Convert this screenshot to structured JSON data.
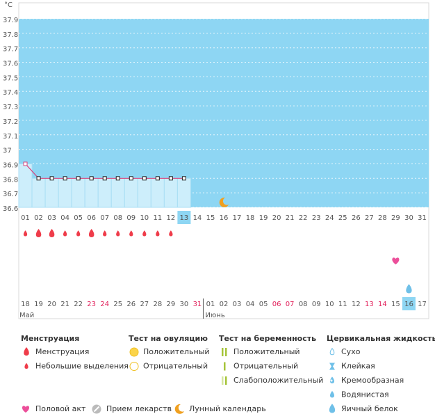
{
  "chart_data": {
    "type": "line",
    "y_label": "°C",
    "categories": [
      "01",
      "02",
      "03",
      "04",
      "05",
      "06",
      "07",
      "08",
      "09",
      "10",
      "11",
      "12",
      "13",
      "14",
      "15",
      "16",
      "17",
      "18",
      "19",
      "20",
      "21",
      "22",
      "23",
      "24",
      "25",
      "26",
      "27",
      "28",
      "29",
      "30",
      "31"
    ],
    "values": [
      36.9,
      36.8,
      36.8,
      36.8,
      36.8,
      36.8,
      36.8,
      36.8,
      36.8,
      36.8,
      36.8,
      36.8,
      36.8,
      null,
      null,
      null,
      null,
      null,
      null,
      null,
      null,
      null,
      null,
      null,
      null,
      null,
      null,
      null,
      null,
      null,
      null
    ],
    "ylim": [
      36.6,
      37.9
    ],
    "yticks": [
      36.6,
      36.7,
      36.8,
      36.9,
      37,
      37.1,
      37.2,
      37.3,
      37.4,
      37.5,
      37.6,
      37.7,
      37.8,
      37.9
    ],
    "color": "#d8457e",
    "background": "#8ed6f3",
    "grid": true,
    "selected": 12
  },
  "calendar": {
    "menstruation": [
      "light",
      "heavy",
      "heavy",
      "light",
      "light",
      "heavy",
      "light",
      "light",
      "light",
      "light",
      "light",
      "light",
      null,
      null,
      null,
      null,
      null,
      null,
      null,
      null,
      null,
      null,
      null,
      null,
      null,
      null,
      null,
      null,
      null,
      null,
      null
    ],
    "intercourse_days": [
      28
    ],
    "fluid_days": [
      {
        "day": 29,
        "icon": "egg-white"
      }
    ],
    "moon_days": [
      15
    ],
    "selected": 29,
    "cycle_days": [
      {
        "label": "18",
        "red": false
      },
      {
        "label": "19",
        "red": false
      },
      {
        "label": "20",
        "red": false
      },
      {
        "label": "21",
        "red": false
      },
      {
        "label": "22",
        "red": false
      },
      {
        "label": "23",
        "red": true
      },
      {
        "label": "24",
        "red": true
      },
      {
        "label": "25",
        "red": false
      },
      {
        "label": "26",
        "red": false
      },
      {
        "label": "27",
        "red": false
      },
      {
        "label": "28",
        "red": false
      },
      {
        "label": "29",
        "red": false
      },
      {
        "label": "30",
        "red": false
      },
      {
        "label": "31",
        "red": true
      },
      {
        "label": "01",
        "red": false
      },
      {
        "label": "02",
        "red": false
      },
      {
        "label": "03",
        "red": false
      },
      {
        "label": "04",
        "red": false
      },
      {
        "label": "05",
        "red": false
      },
      {
        "label": "06",
        "red": true
      },
      {
        "label": "07",
        "red": true
      },
      {
        "label": "08",
        "red": false
      },
      {
        "label": "09",
        "red": false
      },
      {
        "label": "10",
        "red": false
      },
      {
        "label": "11",
        "red": false
      },
      {
        "label": "12",
        "red": false
      },
      {
        "label": "13",
        "red": true
      },
      {
        "label": "14",
        "red": true
      },
      {
        "label": "15",
        "red": false
      },
      {
        "label": "16",
        "red": false
      },
      {
        "label": "17",
        "red": false
      }
    ],
    "months": [
      {
        "label": "Май",
        "start": 0
      },
      {
        "label": "Июнь",
        "start": 14
      }
    ]
  },
  "legend": {
    "groups": [
      {
        "title": "Менструация",
        "items": [
          {
            "label": "Менструация",
            "icon": "heavy"
          },
          {
            "label": "Небольшие выделения",
            "icon": "light"
          }
        ]
      },
      {
        "title": "Тест на овуляцию",
        "items": [
          {
            "label": "Положительный",
            "icon": "ov-pos"
          },
          {
            "label": "Отрицательный",
            "icon": "ov-neg"
          }
        ]
      },
      {
        "title": "Тест на беременность",
        "items": [
          {
            "label": "Положительный",
            "icon": "pr-pos"
          },
          {
            "label": "Отрицательный",
            "icon": "pr-neg"
          },
          {
            "label": "Слабоположительный",
            "icon": "pr-weak"
          }
        ]
      },
      {
        "title": "Цервикальная жидкость",
        "items": [
          {
            "label": "Сухо",
            "icon": "dry"
          },
          {
            "label": "Клейкая",
            "icon": "sticky"
          },
          {
            "label": "Кремообразная",
            "icon": "creamy"
          },
          {
            "label": "Водянистая",
            "icon": "watery"
          },
          {
            "label": "Яичный белок",
            "icon": "egg-white"
          }
        ]
      }
    ],
    "extras": [
      {
        "label": "Половой акт",
        "icon": "heart"
      },
      {
        "label": "Прием лекарств",
        "icon": "pill"
      },
      {
        "label": "Лунный календарь",
        "icon": "moon"
      }
    ]
  }
}
